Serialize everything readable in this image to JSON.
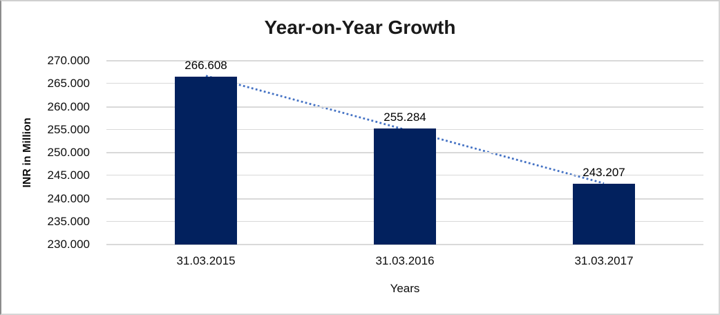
{
  "chart_data": {
    "type": "bar",
    "title": "Year-on-Year Growth",
    "xlabel": "Years",
    "ylabel": "INR in Million",
    "categories": [
      "31.03.2015",
      "31.03.2016",
      "31.03.2017"
    ],
    "values": [
      266.608,
      255.284,
      243.207
    ],
    "data_labels": [
      "266.608",
      "255.284",
      "243.207"
    ],
    "ylim": [
      230,
      270
    ],
    "ytick_step": 5,
    "ytick_labels": [
      "270.000",
      "265.000",
      "260.000",
      "255.000",
      "250.000",
      "245.000",
      "240.000",
      "235.000",
      "230.000"
    ],
    "grid": true,
    "legend_position": "none",
    "trendline": {
      "type": "linear",
      "style": "dotted",
      "color": "#4472c4"
    },
    "colors": {
      "bar": "#02215e",
      "gridline": "#d9d9d9",
      "title_text": "#1a1a1a",
      "axis_text": "#0d0d0d"
    }
  }
}
